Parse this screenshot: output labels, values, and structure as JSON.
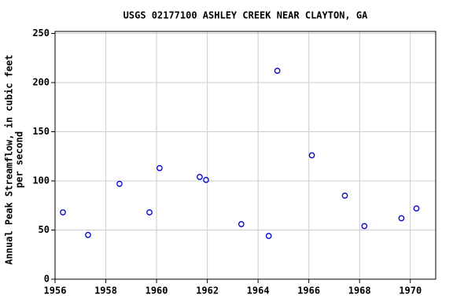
{
  "chart_data": {
    "type": "scatter",
    "title": "USGS 02177100 ASHLEY CREEK NEAR CLAYTON, GA",
    "y_label": [
      "Annual Peak Streamflow, in cubic feet",
      "per second"
    ],
    "color": "#0000cc",
    "x": [
      1956.31,
      1957.3,
      1958.54,
      1959.72,
      1960.12,
      1961.7,
      1961.95,
      1963.34,
      1964.42,
      1964.76,
      1966.12,
      1967.42,
      1968.19,
      1969.65,
      1970.24
    ],
    "values": [
      68,
      45,
      97,
      68,
      113,
      104,
      101,
      56,
      44,
      212,
      126,
      85,
      54,
      62,
      72
    ],
    "xlim": [
      1956,
      1971
    ],
    "xticks": [
      1956,
      1958,
      1960,
      1962,
      1964,
      1966,
      1968,
      1970
    ],
    "ylim": [
      0,
      252
    ],
    "yticks": [
      0,
      50,
      100,
      150,
      200,
      250
    ],
    "grid": true
  }
}
